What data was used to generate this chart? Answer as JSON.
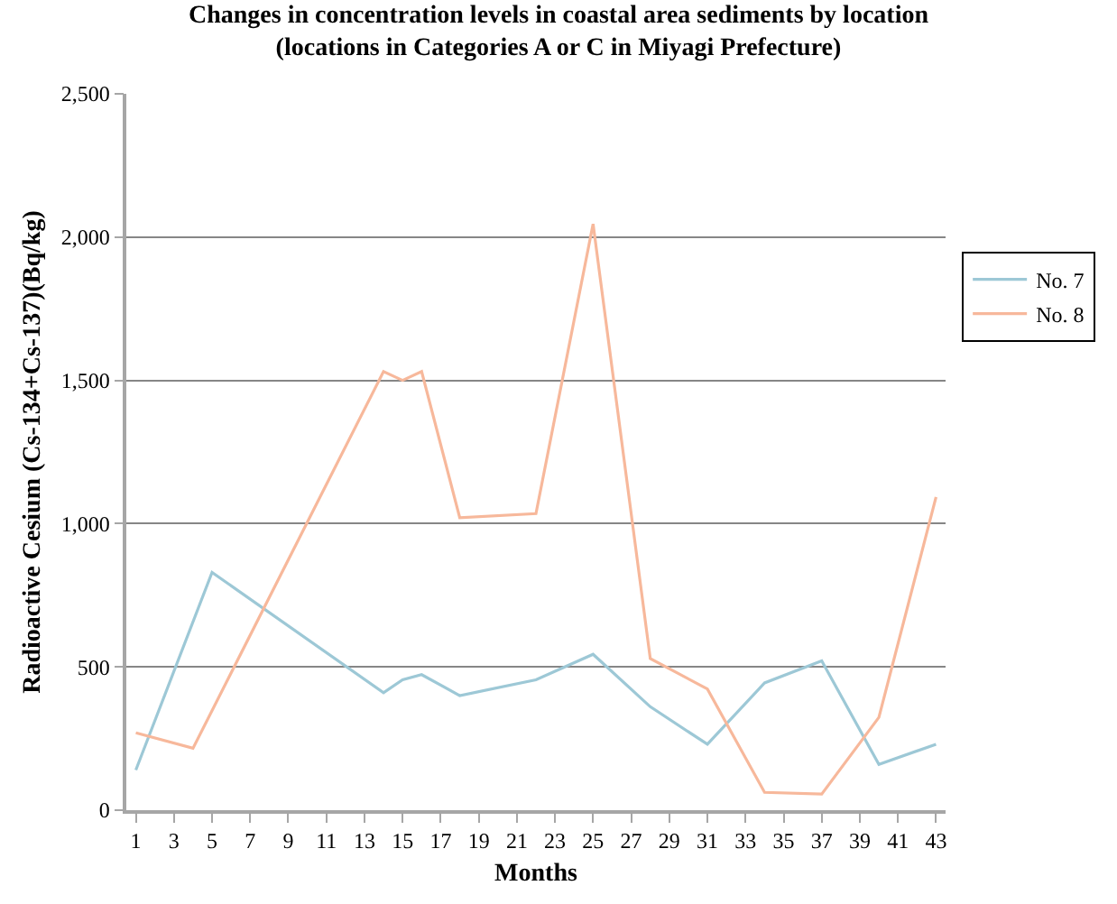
{
  "chart_data": {
    "type": "line",
    "title": "Changes in concentration levels in coastal area sediments by location\n(locations in Categories A or C in Miyagi Prefecture)",
    "xlabel": "Months",
    "ylabel": "Radioactive Cesium (Cs-134+Cs-137)(Bq/kg)",
    "x": [
      1,
      4,
      5,
      14,
      15,
      16,
      18,
      22,
      25,
      28,
      31,
      34,
      37,
      40,
      43
    ],
    "series": [
      {
        "name": "No. 7",
        "color": "#9dc8d6",
        "values": [
          140,
          null,
          830,
          410,
          455,
          473,
          400,
          455,
          544,
          361,
          230,
          444,
          521,
          160,
          230
        ]
      },
      {
        "name": "No. 8",
        "color": "#f7b89b",
        "values": [
          270,
          216,
          null,
          1531,
          1500,
          1531,
          1021,
          1035,
          2046,
          529,
          423,
          62,
          56,
          324,
          1093
        ]
      }
    ],
    "xlim": [
      0.5,
      43.5
    ],
    "xticks": [
      1,
      3,
      5,
      7,
      9,
      11,
      13,
      15,
      17,
      19,
      21,
      23,
      25,
      27,
      29,
      31,
      33,
      35,
      37,
      39,
      41,
      43
    ],
    "ylim": [
      0,
      2500
    ],
    "yticks": [
      {
        "value": 0,
        "label": "0"
      },
      {
        "value": 500,
        "label": "500"
      },
      {
        "value": 1000,
        "label": "1,000"
      },
      {
        "value": 1500,
        "label": "1,500"
      },
      {
        "value": 2000,
        "label": "2,000"
      },
      {
        "value": 2500,
        "label": "2,500"
      }
    ],
    "grid": "y",
    "legend": "right",
    "marker": "none",
    "line_style": "solid"
  }
}
